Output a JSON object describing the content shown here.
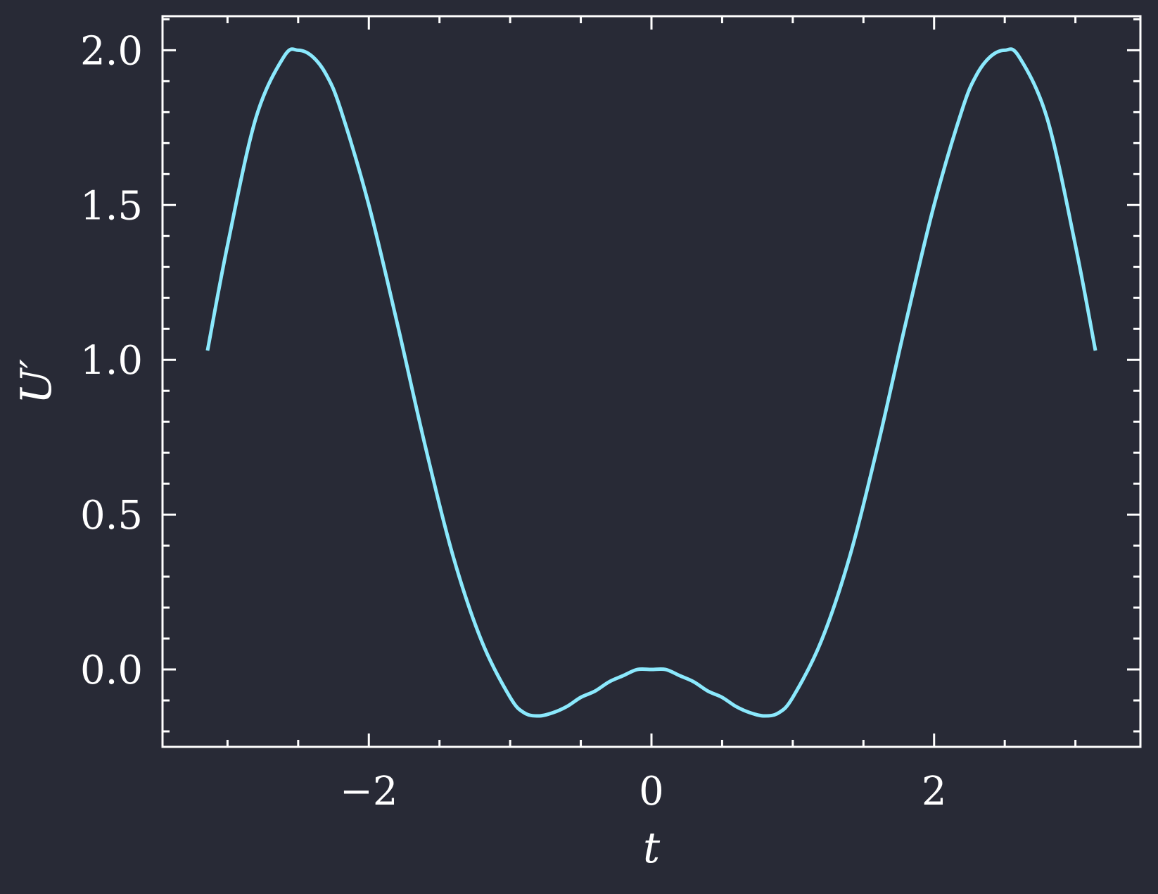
{
  "chart_data": {
    "type": "line",
    "title": "",
    "xlabel": "t",
    "ylabel": "U′",
    "xlim": [
      -3.46,
      3.46
    ],
    "ylim": [
      -0.25,
      2.11
    ],
    "grid": false,
    "legend": "none",
    "xticks": {
      "major": [
        -2,
        0,
        2
      ],
      "major_labels": [
        "−2",
        "0",
        "2"
      ],
      "minor": [
        -3,
        -2.5,
        -1.5,
        -1,
        -0.5,
        0.5,
        1,
        1.5,
        2.5,
        3
      ]
    },
    "yticks": {
      "major": [
        0.0,
        0.5,
        1.0,
        1.5,
        2.0
      ],
      "major_labels": [
        "0.0",
        "0.5",
        "1.0",
        "1.5",
        "2.0"
      ],
      "minor": [
        -0.2,
        -0.1,
        0.1,
        0.2,
        0.3,
        0.4,
        0.6,
        0.7,
        0.8,
        0.9,
        1.1,
        1.2,
        1.3,
        1.4,
        1.6,
        1.7,
        1.8,
        1.9,
        2.1
      ]
    },
    "series": [
      {
        "color": "#8be9fd",
        "x": [
          -3.1416,
          -3.0,
          -2.8,
          -2.6,
          -2.5,
          -2.4,
          -2.3,
          -2.2,
          -2.0,
          -1.8,
          -1.6,
          -1.4,
          -1.2,
          -1.0,
          -0.9,
          -0.8,
          -0.7,
          -0.6,
          -0.5,
          -0.4,
          -0.3,
          -0.2,
          -0.1,
          0.0,
          0.1,
          0.2,
          0.3,
          0.4,
          0.5,
          0.6,
          0.7,
          0.8,
          0.9,
          1.0,
          1.2,
          1.4,
          1.6,
          1.8,
          2.0,
          2.2,
          2.3,
          2.4,
          2.5,
          2.6,
          2.8,
          3.0,
          3.1416
        ],
        "y": [
          1.03,
          1.37,
          1.78,
          1.98,
          2.0,
          1.98,
          1.92,
          1.81,
          1.5,
          1.12,
          0.72,
          0.36,
          0.09,
          -0.09,
          -0.14,
          -0.15,
          -0.14,
          -0.12,
          -0.09,
          -0.07,
          -0.04,
          -0.02,
          0.0,
          0.0,
          0.0,
          -0.02,
          -0.04,
          -0.07,
          -0.09,
          -0.12,
          -0.14,
          -0.15,
          -0.14,
          -0.09,
          0.09,
          0.36,
          0.72,
          1.12,
          1.5,
          1.81,
          1.92,
          1.98,
          2.0,
          1.98,
          1.78,
          1.37,
          1.03
        ]
      }
    ]
  }
}
